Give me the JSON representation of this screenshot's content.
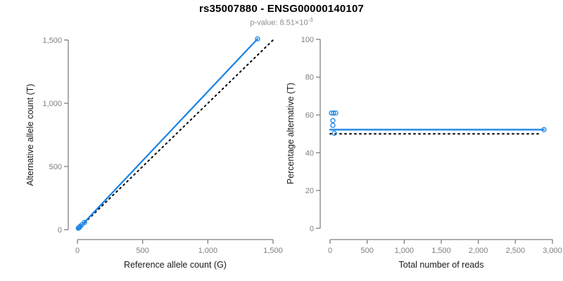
{
  "header": {
    "title": "rs35007880 - ENSG00000140107",
    "pvalue_label": "p-value: 8.51×10",
    "pvalue_exponent": "-3"
  },
  "colors": {
    "accent_blue": "#1E86E5",
    "reference_line_black": "#000000",
    "axis_gray": "#808080",
    "tick_text_gray": "#7f7f7f",
    "axis_title_text": "#1a1a1a",
    "subtitle_gray": "#8c8c8c"
  },
  "chart_data": [
    {
      "type": "scatter",
      "panel": "allele-counts",
      "xlabel": "Reference allele count (G)",
      "ylabel": "Alternative allele count (T)",
      "xlim": [
        0,
        1500
      ],
      "ylim": [
        0,
        1500
      ],
      "grid": false,
      "xticks": {
        "values": [
          0,
          500,
          1000,
          1500
        ],
        "labels": [
          "0",
          "500",
          "1,000",
          "1,500"
        ]
      },
      "yticks": {
        "values": [
          0,
          500,
          1000,
          1500
        ],
        "labels": [
          "0",
          "500",
          "1,000",
          "1,500"
        ]
      },
      "points": [
        [
          7,
          12
        ],
        [
          12,
          15
        ],
        [
          18,
          23
        ],
        [
          20,
          26
        ],
        [
          35,
          40
        ],
        [
          55,
          58
        ],
        [
          1381,
          1509
        ]
      ],
      "fit_line": {
        "x1": 0,
        "y1": 0,
        "x2": 1381,
        "y2": 1509
      },
      "reference_line": {
        "x1": 0,
        "y1": 0,
        "x2": 1500,
        "y2": 1500
      }
    },
    {
      "type": "scatter",
      "panel": "percentage-vs-coverage",
      "xlabel": "Total number of reads",
      "ylabel": "Percentage alternative (T)",
      "xlim": [
        0,
        3000
      ],
      "ylim": [
        0,
        100
      ],
      "grid": false,
      "xticks": {
        "values": [
          0,
          500,
          1000,
          1500,
          2000,
          2500,
          3000
        ],
        "labels": [
          "0",
          "500",
          "1,000",
          "1,500",
          "2,000",
          "2,500",
          "3,000"
        ]
      },
      "yticks": {
        "values": [
          0,
          20,
          40,
          60,
          80,
          100
        ],
        "labels": [
          "0",
          "20",
          "40",
          "60",
          "80",
          "100"
        ]
      },
      "points": [
        [
          19,
          61
        ],
        [
          47,
          61
        ],
        [
          76,
          61
        ],
        [
          38,
          57
        ],
        [
          38,
          54.5
        ],
        [
          57,
          50.3
        ],
        [
          2886,
          52.2
        ]
      ],
      "fit_line": {
        "x1": 0,
        "y1": 52.2,
        "x2": 2886,
        "y2": 52.2
      },
      "reference_line": {
        "x1": 0,
        "y1": 50,
        "x2": 2810,
        "y2": 50
      }
    }
  ]
}
